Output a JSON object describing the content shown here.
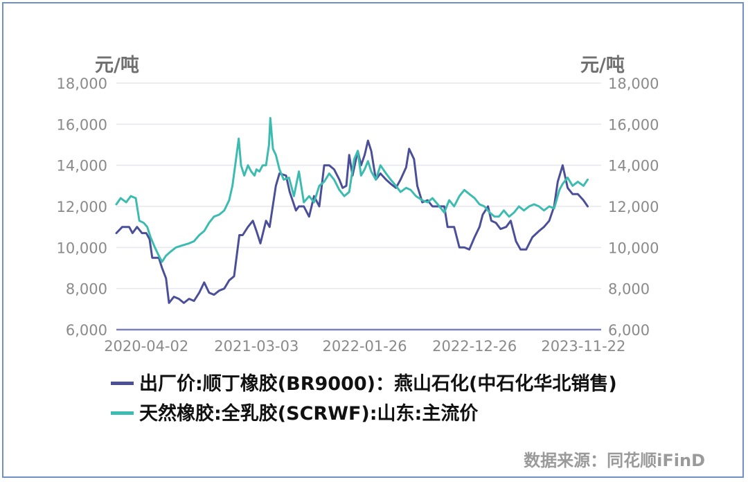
{
  "units": {
    "left": "元/吨",
    "right": "元/吨"
  },
  "source": "数据来源：同花顺iFinD",
  "colors": {
    "series1": "#4a4f98",
    "series2": "#3cbcb0",
    "grid": "#e6e6ee",
    "baseline": "#7d7fb8",
    "tick": "#8a8a8a"
  },
  "chart_data": {
    "type": "line",
    "x_ticks": [
      "2020-04-02",
      "2021-03-03",
      "2022-01-26",
      "2022-12-26",
      "2023-11-22"
    ],
    "x_range": [
      "2020-01-02",
      "2024-01-15"
    ],
    "y_ticks": [
      "6,000",
      "8,000",
      "10,000",
      "12,000",
      "14,000",
      "16,000",
      "18,000"
    ],
    "y_right_ticks": [
      "6,000",
      "8,000",
      "10,000",
      "12,000",
      "14,000",
      "16,000",
      "18,000"
    ],
    "ylim": [
      6000,
      18000
    ],
    "ylabel": "元/吨",
    "legend": "bottom",
    "grid": true,
    "series": [
      {
        "name": "出厂价:顺丁橡胶(BR9000)：燕山石化(中石化华北销售)",
        "color": "#4a4f98",
        "points": [
          [
            "2020-01-02",
            10700
          ],
          [
            "2020-01-20",
            11000
          ],
          [
            "2020-02-10",
            11000
          ],
          [
            "2020-02-20",
            10700
          ],
          [
            "2020-03-05",
            11000
          ],
          [
            "2020-03-20",
            10700
          ],
          [
            "2020-04-02",
            10700
          ],
          [
            "2020-04-12",
            10400
          ],
          [
            "2020-04-20",
            9500
          ],
          [
            "2020-05-10",
            9500
          ],
          [
            "2020-05-20",
            9000
          ],
          [
            "2020-06-01",
            8500
          ],
          [
            "2020-06-10",
            7300
          ],
          [
            "2020-06-25",
            7600
          ],
          [
            "2020-07-10",
            7500
          ],
          [
            "2020-07-25",
            7300
          ],
          [
            "2020-08-10",
            7500
          ],
          [
            "2020-08-25",
            7400
          ],
          [
            "2020-09-10",
            7800
          ],
          [
            "2020-09-25",
            8300
          ],
          [
            "2020-10-10",
            7800
          ],
          [
            "2020-10-25",
            7700
          ],
          [
            "2020-11-10",
            7900
          ],
          [
            "2020-11-25",
            8000
          ],
          [
            "2020-12-10",
            8400
          ],
          [
            "2020-12-25",
            8600
          ],
          [
            "2021-01-10",
            10600
          ],
          [
            "2021-01-20",
            10600
          ],
          [
            "2021-02-05",
            11000
          ],
          [
            "2021-02-20",
            11300
          ],
          [
            "2021-03-03",
            10800
          ],
          [
            "2021-03-15",
            10200
          ],
          [
            "2021-04-01",
            11300
          ],
          [
            "2021-04-12",
            11000
          ],
          [
            "2021-05-01",
            13000
          ],
          [
            "2021-05-12",
            13600
          ],
          [
            "2021-06-01",
            13500
          ],
          [
            "2021-06-12",
            12700
          ],
          [
            "2021-07-01",
            11800
          ],
          [
            "2021-07-10",
            12000
          ],
          [
            "2021-07-25",
            12000
          ],
          [
            "2021-08-10",
            11500
          ],
          [
            "2021-08-25",
            12500
          ],
          [
            "2021-09-10",
            12000
          ],
          [
            "2021-09-25",
            14000
          ],
          [
            "2021-10-10",
            14000
          ],
          [
            "2021-10-25",
            13800
          ],
          [
            "2021-11-10",
            13300
          ],
          [
            "2021-11-20",
            12900
          ],
          [
            "2021-12-01",
            13000
          ],
          [
            "2021-12-10",
            14500
          ],
          [
            "2021-12-20",
            13500
          ],
          [
            "2022-01-05",
            14700
          ],
          [
            "2022-01-15",
            14000
          ],
          [
            "2022-01-26",
            14500
          ],
          [
            "2022-02-05",
            15200
          ],
          [
            "2022-02-15",
            14700
          ],
          [
            "2022-03-01",
            13300
          ],
          [
            "2022-03-15",
            13600
          ],
          [
            "2022-04-01",
            13300
          ],
          [
            "2022-04-15",
            13100
          ],
          [
            "2022-05-01",
            12900
          ],
          [
            "2022-05-15",
            13300
          ],
          [
            "2022-06-01",
            13900
          ],
          [
            "2022-06-10",
            14800
          ],
          [
            "2022-06-25",
            14300
          ],
          [
            "2022-07-05",
            13000
          ],
          [
            "2022-07-20",
            12200
          ],
          [
            "2022-08-05",
            12300
          ],
          [
            "2022-08-20",
            12000
          ],
          [
            "2022-09-05",
            12000
          ],
          [
            "2022-09-25",
            12000
          ],
          [
            "2022-10-05",
            11000
          ],
          [
            "2022-10-25",
            11000
          ],
          [
            "2022-11-10",
            10000
          ],
          [
            "2022-11-25",
            10000
          ],
          [
            "2022-12-10",
            9900
          ],
          [
            "2022-12-26",
            10500
          ],
          [
            "2023-01-10",
            11000
          ],
          [
            "2023-01-20",
            11600
          ],
          [
            "2023-02-05",
            12000
          ],
          [
            "2023-02-15",
            11300
          ],
          [
            "2023-03-01",
            11200
          ],
          [
            "2023-03-15",
            10900
          ],
          [
            "2023-04-01",
            11000
          ],
          [
            "2023-04-15",
            11300
          ],
          [
            "2023-05-01",
            10300
          ],
          [
            "2023-05-15",
            9900
          ],
          [
            "2023-06-01",
            9900
          ],
          [
            "2023-06-20",
            10500
          ],
          [
            "2023-07-10",
            10800
          ],
          [
            "2023-07-25",
            11000
          ],
          [
            "2023-08-10",
            11300
          ],
          [
            "2023-08-25",
            12000
          ],
          [
            "2023-09-05",
            13200
          ],
          [
            "2023-09-20",
            14000
          ],
          [
            "2023-10-05",
            12900
          ],
          [
            "2023-10-20",
            12600
          ],
          [
            "2023-11-05",
            12600
          ],
          [
            "2023-11-22",
            12300
          ],
          [
            "2023-12-05",
            12000
          ]
        ]
      },
      {
        "name": "天然橡胶:全乳胶(SCRWF):山东:主流价",
        "color": "#3cbcb0",
        "points": [
          [
            "2020-01-02",
            12100
          ],
          [
            "2020-01-15",
            12400
          ],
          [
            "2020-02-01",
            12200
          ],
          [
            "2020-02-15",
            12500
          ],
          [
            "2020-03-01",
            12400
          ],
          [
            "2020-03-12",
            11300
          ],
          [
            "2020-03-25",
            11200
          ],
          [
            "2020-04-05",
            11000
          ],
          [
            "2020-04-15",
            10500
          ],
          [
            "2020-04-28",
            10000
          ],
          [
            "2020-05-10",
            9600
          ],
          [
            "2020-05-20",
            9300
          ],
          [
            "2020-06-01",
            9600
          ],
          [
            "2020-06-15",
            9800
          ],
          [
            "2020-07-01",
            10000
          ],
          [
            "2020-07-20",
            10100
          ],
          [
            "2020-08-10",
            10200
          ],
          [
            "2020-08-25",
            10300
          ],
          [
            "2020-09-10",
            10600
          ],
          [
            "2020-09-25",
            10800
          ],
          [
            "2020-10-10",
            11200
          ],
          [
            "2020-10-25",
            11500
          ],
          [
            "2020-11-10",
            11600
          ],
          [
            "2020-11-25",
            11800
          ],
          [
            "2020-12-10",
            12300
          ],
          [
            "2020-12-20",
            13000
          ],
          [
            "2020-12-30",
            14200
          ],
          [
            "2021-01-08",
            15300
          ],
          [
            "2021-01-15",
            14000
          ],
          [
            "2021-01-25",
            13500
          ],
          [
            "2021-02-05",
            14000
          ],
          [
            "2021-02-15",
            13700
          ],
          [
            "2021-02-25",
            13500
          ],
          [
            "2021-03-03",
            13800
          ],
          [
            "2021-03-12",
            13700
          ],
          [
            "2021-03-22",
            14000
          ],
          [
            "2021-04-01",
            14000
          ],
          [
            "2021-04-10",
            15000
          ],
          [
            "2021-04-14",
            16300
          ],
          [
            "2021-04-22",
            14800
          ],
          [
            "2021-05-01",
            14500
          ],
          [
            "2021-05-12",
            13800
          ],
          [
            "2021-05-25",
            13300
          ],
          [
            "2021-06-10",
            13400
          ],
          [
            "2021-06-25",
            12500
          ],
          [
            "2021-07-10",
            13700
          ],
          [
            "2021-07-25",
            12200
          ],
          [
            "2021-08-10",
            12500
          ],
          [
            "2021-08-25",
            12200
          ],
          [
            "2021-09-10",
            13000
          ],
          [
            "2021-09-25",
            13200
          ],
          [
            "2021-10-10",
            13600
          ],
          [
            "2021-10-25",
            13300
          ],
          [
            "2021-11-10",
            12800
          ],
          [
            "2021-11-25",
            12500
          ],
          [
            "2021-12-10",
            12700
          ],
          [
            "2021-12-25",
            14300
          ],
          [
            "2022-01-05",
            14700
          ],
          [
            "2022-01-15",
            13500
          ],
          [
            "2022-01-26",
            13800
          ],
          [
            "2022-02-05",
            14200
          ],
          [
            "2022-02-15",
            13700
          ],
          [
            "2022-03-01",
            13300
          ],
          [
            "2022-03-15",
            14000
          ],
          [
            "2022-04-01",
            13600
          ],
          [
            "2022-04-15",
            13300
          ],
          [
            "2022-05-01",
            13000
          ],
          [
            "2022-05-15",
            12700
          ],
          [
            "2022-06-01",
            12900
          ],
          [
            "2022-06-15",
            12800
          ],
          [
            "2022-07-01",
            12500
          ],
          [
            "2022-07-20",
            12300
          ],
          [
            "2022-08-05",
            12200
          ],
          [
            "2022-08-20",
            12400
          ],
          [
            "2022-09-05",
            12100
          ],
          [
            "2022-09-25",
            11700
          ],
          [
            "2022-10-10",
            12300
          ],
          [
            "2022-10-25",
            12000
          ],
          [
            "2022-11-10",
            12500
          ],
          [
            "2022-11-25",
            12800
          ],
          [
            "2022-12-10",
            12600
          ],
          [
            "2022-12-26",
            12400
          ],
          [
            "2023-01-10",
            12100
          ],
          [
            "2023-01-25",
            12000
          ],
          [
            "2023-02-10",
            11700
          ],
          [
            "2023-02-25",
            11500
          ],
          [
            "2023-03-10",
            11500
          ],
          [
            "2023-03-25",
            11800
          ],
          [
            "2023-04-10",
            11500
          ],
          [
            "2023-04-25",
            11700
          ],
          [
            "2023-05-10",
            12000
          ],
          [
            "2023-05-25",
            11800
          ],
          [
            "2023-06-10",
            12000
          ],
          [
            "2023-06-25",
            12100
          ],
          [
            "2023-07-10",
            12000
          ],
          [
            "2023-07-25",
            11800
          ],
          [
            "2023-08-10",
            12000
          ],
          [
            "2023-08-25",
            11900
          ],
          [
            "2023-09-10",
            12800
          ],
          [
            "2023-09-20",
            13100
          ],
          [
            "2023-10-05",
            13400
          ],
          [
            "2023-10-20",
            13000
          ],
          [
            "2023-11-05",
            13200
          ],
          [
            "2023-11-22",
            13000
          ],
          [
            "2023-12-05",
            13300
          ]
        ]
      }
    ]
  }
}
